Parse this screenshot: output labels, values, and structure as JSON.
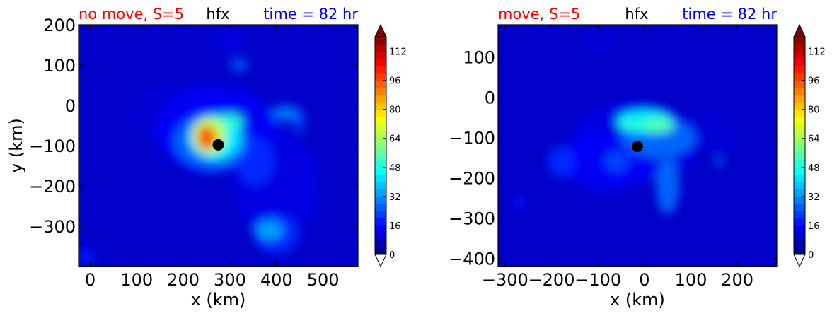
{
  "chart_data": [
    {
      "type": "heatmap",
      "title_left": "no move, S=5",
      "title_center": "hfx",
      "title_right": "time = 82 hr",
      "title_colors": {
        "left": "#ff0000",
        "center": "#000000",
        "right": "#0000ff"
      },
      "xlabel": "x (km)",
      "ylabel": "y (km)",
      "xlim": [
        -25,
        575
      ],
      "ylim": [
        -400,
        200
      ],
      "xticks": [
        0,
        100,
        200,
        300,
        400,
        500
      ],
      "yticks": [
        -300,
        -200,
        -100,
        0,
        100,
        200
      ],
      "xtick_labels": [
        "0",
        "100",
        "200",
        "300",
        "400",
        "500"
      ],
      "ytick_labels": [
        "−300",
        "−200",
        "−100",
        "0",
        "100",
        "200"
      ],
      "center_marker": {
        "x": 275,
        "y": -98
      },
      "field_blobs": [
        {
          "x": 270,
          "y": -60,
          "rx": 130,
          "ry": 110,
          "v": 14
        },
        {
          "x": 200,
          "y": -20,
          "rx": 120,
          "ry": 80,
          "v": 10
        },
        {
          "x": 400,
          "y": -200,
          "rx": 90,
          "ry": 140,
          "v": 12
        },
        {
          "x": 260,
          "y": -90,
          "rx": 80,
          "ry": 70,
          "v": 28
        },
        {
          "x": 268,
          "y": -80,
          "rx": 55,
          "ry": 55,
          "v": 45
        },
        {
          "x": 255,
          "y": -75,
          "rx": 36,
          "ry": 45,
          "v": 70
        },
        {
          "x": 250,
          "y": -80,
          "rx": 20,
          "ry": 30,
          "v": 98
        },
        {
          "x": 300,
          "y": -40,
          "rx": 30,
          "ry": 20,
          "v": 50
        },
        {
          "x": 420,
          "y": -20,
          "rx": 30,
          "ry": 20,
          "v": 30
        },
        {
          "x": 450,
          "y": -40,
          "rx": 12,
          "ry": 30,
          "v": 22
        },
        {
          "x": 385,
          "y": -310,
          "rx": 30,
          "ry": 25,
          "v": 35
        },
        {
          "x": 320,
          "y": 100,
          "rx": 20,
          "ry": 15,
          "v": 26
        },
        {
          "x": 300,
          "y": 160,
          "rx": 30,
          "ry": 30,
          "v": 12
        },
        {
          "x": 400,
          "y": -320,
          "rx": 50,
          "ry": 50,
          "v": 20
        },
        {
          "x": -10,
          "y": -375,
          "rx": 20,
          "ry": 20,
          "v": 18
        },
        {
          "x": 355,
          "y": -140,
          "rx": 40,
          "ry": 60,
          "v": 20
        }
      ],
      "colorbar": {
        "min": 0,
        "max": 120,
        "step": 4,
        "ticks": [
          0,
          16,
          32,
          48,
          64,
          80,
          96,
          112
        ]
      }
    },
    {
      "type": "heatmap",
      "title_left": "move, S=5",
      "title_center": "hfx",
      "title_right": "time = 82 hr",
      "title_colors": {
        "left": "#ff0000",
        "center": "#000000",
        "right": "#0000ff"
      },
      "xlabel": "x (km)",
      "ylabel": "",
      "xlim": [
        -315,
        285
      ],
      "ylim": [
        -420,
        180
      ],
      "xticks": [
        -300,
        -200,
        -100,
        0,
        100,
        200
      ],
      "yticks": [
        -400,
        -300,
        -200,
        -100,
        0,
        100
      ],
      "xtick_labels": [
        "−300",
        "−200",
        "−100",
        "0",
        "100",
        "200"
      ],
      "ytick_labels": [
        "−400",
        "−300",
        "−200",
        "−100",
        "0",
        "100"
      ],
      "center_marker": {
        "x": -15,
        "y": -122
      },
      "field_blobs": [
        {
          "x": -20,
          "y": -110,
          "rx": 140,
          "ry": 100,
          "v": 12
        },
        {
          "x": -80,
          "y": -160,
          "rx": 100,
          "ry": 70,
          "v": 14
        },
        {
          "x": 30,
          "y": -100,
          "rx": 80,
          "ry": 50,
          "v": 28
        },
        {
          "x": 0,
          "y": -60,
          "rx": 60,
          "ry": 30,
          "v": 45
        },
        {
          "x": 30,
          "y": -70,
          "rx": 35,
          "ry": 20,
          "v": 55
        },
        {
          "x": -30,
          "y": -70,
          "rx": 25,
          "ry": 15,
          "v": 50
        },
        {
          "x": 50,
          "y": -220,
          "rx": 25,
          "ry": 70,
          "v": 28
        },
        {
          "x": -60,
          "y": -160,
          "rx": 25,
          "ry": 25,
          "v": 24
        },
        {
          "x": -180,
          "y": -160,
          "rx": 30,
          "ry": 40,
          "v": 20
        },
        {
          "x": 150,
          "y": -90,
          "rx": 50,
          "ry": 50,
          "v": 10
        },
        {
          "x": 160,
          "y": -160,
          "rx": 10,
          "ry": 15,
          "v": 24
        },
        {
          "x": -100,
          "y": 140,
          "rx": 40,
          "ry": 30,
          "v": 10
        },
        {
          "x": -270,
          "y": -260,
          "rx": 15,
          "ry": 15,
          "v": 16
        }
      ],
      "colorbar": {
        "min": 0,
        "max": 120,
        "step": 4,
        "ticks": [
          0,
          16,
          32,
          48,
          64,
          80,
          96,
          112
        ]
      }
    }
  ]
}
